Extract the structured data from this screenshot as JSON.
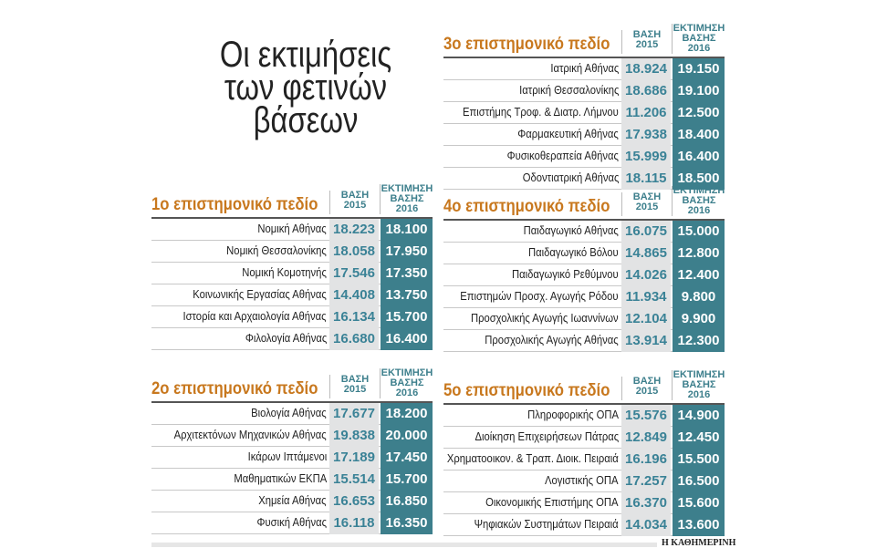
{
  "title": [
    "Οι εκτιμήσεις",
    "των φετινών",
    "βάσεων"
  ],
  "col_2015": [
    "ΒΑΣΗ",
    "2015"
  ],
  "col_2016": [
    "ΕΚΤΙΜΗΣΗ",
    "ΒΑΣΗΣ",
    "2016"
  ],
  "colors": {
    "accent": "#c8781e",
    "teal": "#3d7f8c",
    "grey": "#e2e3e4"
  },
  "tables": [
    {
      "title": "1ο επιστημονικό πεδίο",
      "rows": [
        {
          "name": "Νομική Αθήνας",
          "b2015": "18.223",
          "e2016": "18.100"
        },
        {
          "name": "Νομική Θεσσαλονίκης",
          "b2015": "18.058",
          "e2016": "17.950"
        },
        {
          "name": "Νομική Κομοτηνής",
          "b2015": "17.546",
          "e2016": "17.350"
        },
        {
          "name": "Κοινωνικής Εργασίας Αθήνας",
          "b2015": "14.408",
          "e2016": "13.750"
        },
        {
          "name": "Ιστορία και Αρχαιολογία Αθήνας",
          "b2015": "16.134",
          "e2016": "15.700"
        },
        {
          "name": "Φιλολογία Αθήνας",
          "b2015": "16.680",
          "e2016": "16.400"
        }
      ]
    },
    {
      "title": "2ο επιστημονικό πεδίο",
      "rows": [
        {
          "name": "Βιολογία Αθήνας",
          "b2015": "17.677",
          "e2016": "18.200"
        },
        {
          "name": "Αρχιτεκτόνων Μηχανικών Αθήνας",
          "b2015": "19.838",
          "e2016": "20.000"
        },
        {
          "name": "Ικάρων Ιπτάμενοι",
          "b2015": "17.189",
          "e2016": "17.450"
        },
        {
          "name": "Μαθηματικών ΕΚΠΑ",
          "b2015": "15.514",
          "e2016": "15.700"
        },
        {
          "name": "Χημεία Αθήνας",
          "b2015": "16.653",
          "e2016": "16.850"
        },
        {
          "name": "Φυσική Αθήνας",
          "b2015": "16.118",
          "e2016": "16.350"
        }
      ]
    },
    {
      "title": "3ο επιστημονικό πεδίο",
      "rows": [
        {
          "name": "Ιατρική Αθήνας",
          "b2015": "18.924",
          "e2016": "19.150"
        },
        {
          "name": "Ιατρική Θεσσαλονίκης",
          "b2015": "18.686",
          "e2016": "19.100"
        },
        {
          "name": "Επιστήμης Τροφ. & Διατρ. Λήμνου",
          "b2015": "11.206",
          "e2016": "12.500"
        },
        {
          "name": "Φαρμακευτική Αθήνας",
          "b2015": "17.938",
          "e2016": "18.400"
        },
        {
          "name": "Φυσικοθεραπεία Αθήνας",
          "b2015": "15.999",
          "e2016": "16.400"
        },
        {
          "name": "Οδοντιατρική Αθήνας",
          "b2015": "18.115",
          "e2016": "18.500"
        }
      ]
    },
    {
      "title": "4ο επιστημονικό πεδίο",
      "rows": [
        {
          "name": "Παιδαγωγικό Αθήνας",
          "b2015": "16.075",
          "e2016": "15.000"
        },
        {
          "name": "Παιδαγωγικό Βόλου",
          "b2015": "14.865",
          "e2016": "12.800"
        },
        {
          "name": "Παιδαγωγικό Ρεθύμνου",
          "b2015": "14.026",
          "e2016": "12.400"
        },
        {
          "name": "Επιστημών Προσχ. Αγωγής Ρόδου",
          "b2015": "11.934",
          "e2016": "9.800"
        },
        {
          "name": "Προσχολικής Αγωγής Ιωαννίνων",
          "b2015": "12.104",
          "e2016": "9.900"
        },
        {
          "name": "Προσχολικής Αγωγής Αθήνας",
          "b2015": "13.914",
          "e2016": "12.300"
        }
      ]
    },
    {
      "title": "5ο επιστημονικό πεδίο",
      "rows": [
        {
          "name": "Πληροφορικής ΟΠΑ",
          "b2015": "15.576",
          "e2016": "14.900"
        },
        {
          "name": "Διοίκηση Επιχειρήσεων Πάτρας",
          "b2015": "12.849",
          "e2016": "12.450"
        },
        {
          "name": "Χρηματοοικον. & Τραπ. Διοικ. Πειραιά",
          "b2015": "16.196",
          "e2016": "15.500"
        },
        {
          "name": "Λογιστικής ΟΠΑ",
          "b2015": "17.257",
          "e2016": "16.500"
        },
        {
          "name": "Οικονομικής Επιστήμης ΟΠΑ",
          "b2015": "16.370",
          "e2016": "15.600"
        },
        {
          "name": "Ψηφιακών Συστημάτων Πειραιά",
          "b2015": "14.034",
          "e2016": "13.600"
        }
      ]
    }
  ],
  "credit": "Η ΚΑΘΗΜΕΡΙΝΗ"
}
